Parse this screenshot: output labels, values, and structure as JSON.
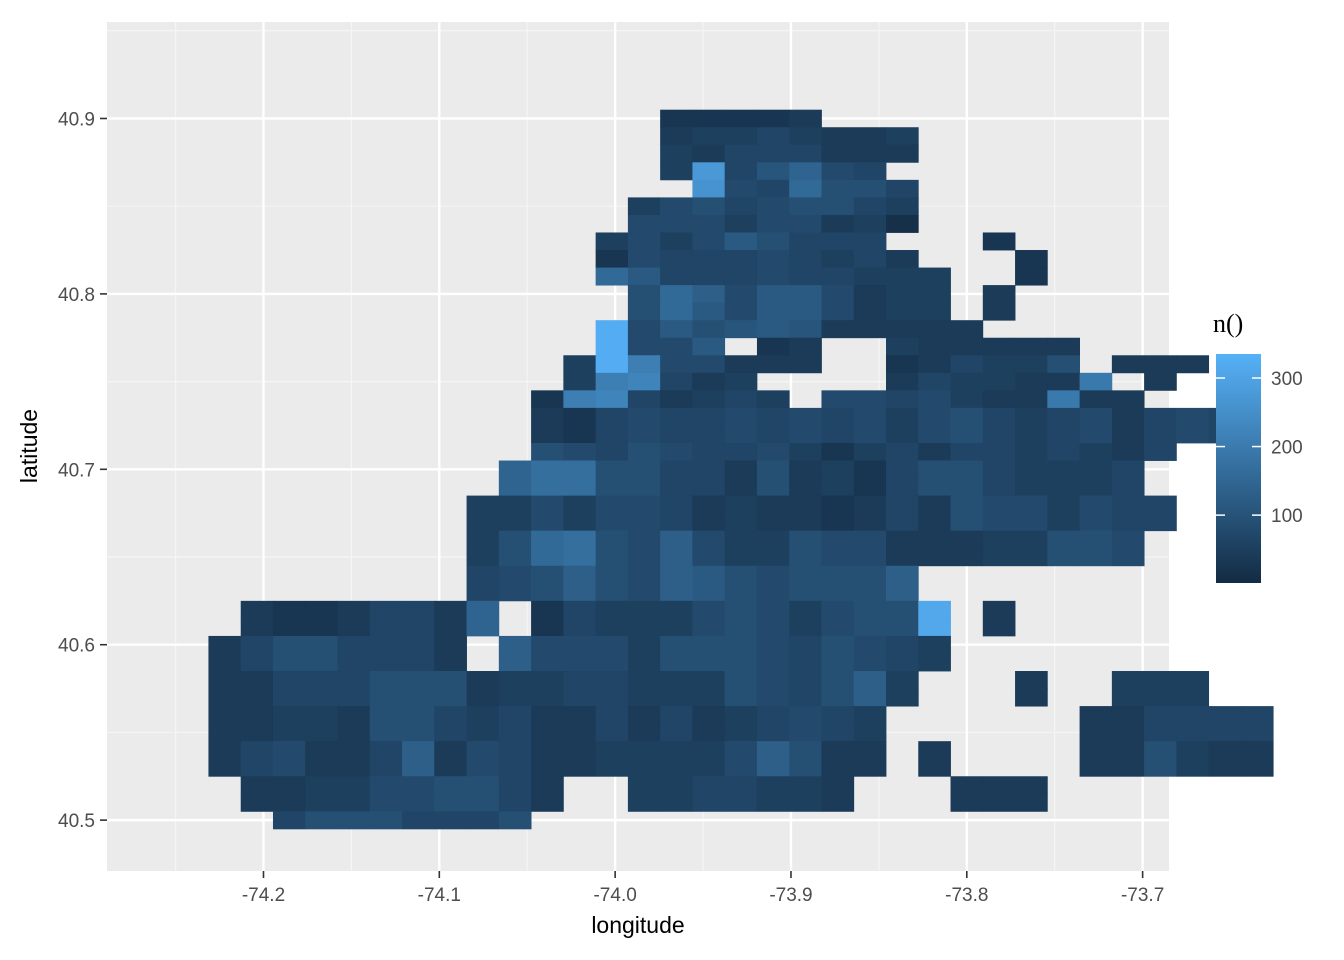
{
  "chart_data": {
    "type": "heatmap",
    "xlabel": "longitude",
    "ylabel": "latitude",
    "xlim": [
      -74.289,
      -73.685
    ],
    "ylim": [
      40.471,
      40.955
    ],
    "x_ticks": [
      -74.2,
      -74.1,
      -74.0,
      -73.9,
      -73.8,
      -73.7
    ],
    "x_tick_labels": [
      "-74.2",
      "-74.1",
      "-74.0",
      "-73.9",
      "-73.8",
      "-73.7"
    ],
    "y_ticks": [
      40.5,
      40.6,
      40.7,
      40.8,
      40.9
    ],
    "y_tick_labels": [
      "40.5",
      "40.6",
      "40.7",
      "40.8",
      "40.9"
    ],
    "grid": true,
    "bin": {
      "x0": -74.268,
      "dx": 0.01835,
      "y0": 40.49275,
      "dy": 0.010018
    },
    "legend": {
      "title": "n()",
      "placement": "right",
      "min": 1,
      "max": 335,
      "ticks": [
        100,
        200,
        300
      ],
      "tick_labels": [
        "100",
        "200",
        "300"
      ],
      "low_color": "#132B43",
      "high_color": "#56B1F7"
    },
    "grid_rows": [
      [
        40.9,
        "................ccccd..........."
      ],
      [
        40.89,
        "................deefedde........"
      ],
      [
        40.88,
        "................edfffddd........"
      ],
      [
        40.87,
        "................evfilgf........."
      ],
      [
        40.86,
        ".................ugfmhhf........."
      ],
      [
        40.85,
        "...............eghfghhfe........"
      ],
      [
        40.84,
        "...............gggeggdeb........"
      ],
      [
        40.83,
        "..............egegjhfff...c....."
      ],
      [
        40.82,
        "..............cgfffgfefd...c....."
      ],
      [
        40.81,
        "..............mjfffgffeee..c....."
      ],
      [
        40.8,
        "...............hmkgjjgdee.d....."
      ],
      [
        40.79,
        "...............hmjgjjgdee.d....."
      ],
      [
        40.78,
        "..............zgjhijiddddd......"
      ],
      [
        40.77,
        "..............zggj.cd..eddddd....."
      ],
      [
        40.76,
        ".............ezqggddd..cdfeeh.ddd.."
      ],
      [
        40.75,
        ".............eqrfde....dfeeddp.d..."
      ],
      [
        40.74,
        "............cqrfdefe.ggfgeddpdd.."
      ],
      [
        40.73,
        "............dcfgffgfgfgeghfefgdfgf"
      ],
      [
        40.72,
        "............dcfgffgfgfgeghfefgdfgf"
      ],
      [
        40.71,
        "............hgfhgffgecefdffefedf."
      ],
      [
        40.7,
        "...........lnnhhffdhdecfhhfeeef.."
      ],
      [
        40.69,
        "...........lnnhhffdhdecfhhfeeef.."
      ],
      [
        40.68,
        "..........eegeggfdeddcdfdhggegff"
      ],
      [
        40.67,
        "..........eegeggfdeddcdfdhggegff"
      ],
      [
        40.66,
        "..........ehmnhgkgeehggdddeehhg.."
      ],
      [
        40.65,
        "..........ehmnhgkgeehggdddeehhg.."
      ],
      [
        40.64,
        "..........fghkhgkjhghhhk.........."
      ],
      [
        40.63,
        "..........fghkhgkjhghhhk.........."
      ],
      [
        40.62,
        "...dccdffdl.cfeeeghgeghhy.d......."
      ],
      [
        40.61,
        "...dccdffdl.cfeeeghgeghhy.d......."
      ],
      [
        40.6,
        "..dfhhfffd.kgggehhhgfhgfe.........."
      ],
      [
        40.59,
        "..dfhhfffd.kgggehhhgfhgfe........."
      ],
      [
        40.58,
        "..ddfffhhhdeeffeeehgfhke...d..eee.."
      ],
      [
        40.57,
        "..ddfffhhhdeeffeeehgfhke...d..eee.."
      ],
      [
        40.56,
        "..ddeedhhfefddfdfdefgfe......ddffff"
      ],
      [
        40.55,
        "..ddeedhhfefddfdfdefgfe......ddffff"
      ],
      [
        40.54,
        "..dfgddfkdgfddeeeegkhdd.d....ddhedd"
      ],
      [
        40.53,
        "..dfgddfkdgfddeeeegkhdd.d....ddhedd"
      ],
      [
        40.52,
        "...ddeegghhfd..eeffeed...ddd......."
      ],
      [
        40.51,
        "...ddeegghhfd..eeffeed...ddd......."
      ],
      [
        40.5,
        "....fhhhfffh......................"
      ]
    ]
  }
}
